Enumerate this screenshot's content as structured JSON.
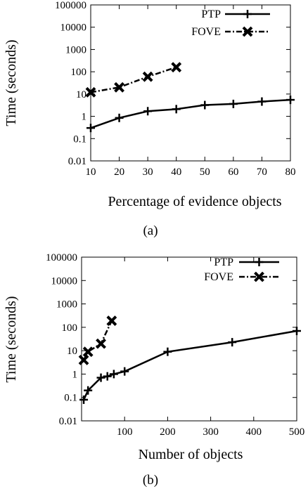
{
  "chart_data": [
    {
      "type": "line",
      "caption": "(a)",
      "xlabel": "Percentage of evidence objects",
      "ylabel": "Time (seconds)",
      "yscale": "log",
      "xlim": [
        10,
        80
      ],
      "ylim": [
        0.01,
        100000
      ],
      "xticks": [
        "10",
        "20",
        "30",
        "40",
        "50",
        "60",
        "70",
        "80"
      ],
      "yticks": [
        "0.01",
        "0.1",
        "1",
        "10",
        "100",
        "1000",
        "10000",
        "100000"
      ],
      "legend_position": "top-right",
      "grid": false,
      "series": [
        {
          "name": "PTP",
          "marker": "plus",
          "x": [
            10,
            20,
            30,
            40,
            50,
            60,
            70,
            80
          ],
          "y": [
            0.3,
            0.85,
            1.7,
            2.1,
            3.2,
            3.6,
            4.6,
            5.5
          ]
        },
        {
          "name": "FOVE",
          "marker": "cross",
          "x": [
            10,
            20,
            30,
            40
          ],
          "y": [
            12,
            20,
            60,
            160
          ]
        }
      ]
    },
    {
      "type": "line",
      "caption": "(b)",
      "xlabel": "Number of objects",
      "ylabel": "Time (seconds)",
      "yscale": "log",
      "xlim": [
        0,
        500
      ],
      "ylim": [
        0.01,
        100000
      ],
      "xticks": [
        "100",
        "200",
        "300",
        "400",
        "500"
      ],
      "yticks": [
        "0.01",
        "0.1",
        "1",
        "10",
        "100",
        "1000",
        "10000",
        "100000"
      ],
      "legend_position": "top-right",
      "grid": false,
      "series": [
        {
          "name": "PTP",
          "marker": "plus",
          "x": [
            5,
            15,
            45,
            60,
            75,
            100,
            200,
            350,
            500
          ],
          "y": [
            0.08,
            0.2,
            0.7,
            0.8,
            1.0,
            1.3,
            9,
            23,
            70
          ]
        },
        {
          "name": "FOVE",
          "marker": "cross",
          "x": [
            5,
            15,
            45,
            70
          ],
          "y": [
            4,
            9,
            20,
            190
          ]
        }
      ]
    }
  ]
}
